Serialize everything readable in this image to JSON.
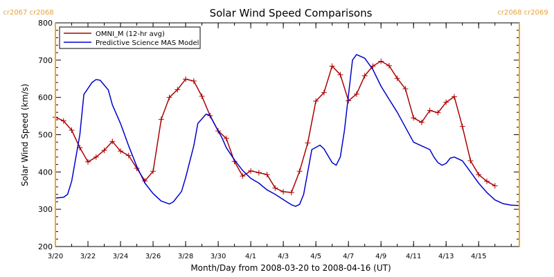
{
  "chart_data": {
    "type": "line",
    "title": "Solar Wind Speed Comparisons",
    "xlabel": "Month/Day from 2008-03-20 to 2008-04-16 (UT)",
    "ylabel": "Solar Wind Speed (km/s)",
    "xlim": [
      "2008-03-20",
      "2008-04-17 12:00"
    ],
    "ylim": [
      200,
      800
    ],
    "y_ticks": [
      200,
      300,
      400,
      500,
      600,
      700,
      800
    ],
    "x_ticks": [
      {
        "date": "2008-03-20",
        "label": "3/20"
      },
      {
        "date": "2008-03-22",
        "label": "3/22"
      },
      {
        "date": "2008-03-24",
        "label": "3/24"
      },
      {
        "date": "2008-03-26",
        "label": "3/26"
      },
      {
        "date": "2008-03-28",
        "label": "3/28"
      },
      {
        "date": "2008-03-30",
        "label": "3/30"
      },
      {
        "date": "2008-04-01",
        "label": "4/1"
      },
      {
        "date": "2008-04-03",
        "label": "4/3"
      },
      {
        "date": "2008-04-05",
        "label": "4/5"
      },
      {
        "date": "2008-04-07",
        "label": "4/7"
      },
      {
        "date": "2008-04-09",
        "label": "4/9"
      },
      {
        "date": "2008-04-11",
        "label": "4/11"
      },
      {
        "date": "2008-04-13",
        "label": "4/13"
      },
      {
        "date": "2008-04-15",
        "label": "4/15"
      }
    ],
    "legend_position": "top-left",
    "grid": false,
    "carrington_markers": [
      {
        "date": "2008-03-20",
        "label": "cr2067 cr2068",
        "color": "#f5a623"
      },
      {
        "date": "2008-04-17 12:00",
        "label": "cr2068 cr2069",
        "color": "#f5a623"
      }
    ],
    "series": [
      {
        "name": "OMNI_M (12-hr avg)",
        "color": "#aa0000",
        "marker": "plus",
        "points": [
          [
            "2008-03-20 00:00",
            547
          ],
          [
            "2008-03-20 12:00",
            537
          ],
          [
            "2008-03-21 00:00",
            512
          ],
          [
            "2008-03-21 12:00",
            465
          ],
          [
            "2008-03-22 00:00",
            427
          ],
          [
            "2008-03-22 12:00",
            440
          ],
          [
            "2008-03-23 00:00",
            458
          ],
          [
            "2008-03-23 12:00",
            482
          ],
          [
            "2008-03-24 00:00",
            456
          ],
          [
            "2008-03-24 12:00",
            444
          ],
          [
            "2008-03-25 00:00",
            410
          ],
          [
            "2008-03-25 12:00",
            376
          ],
          [
            "2008-03-26 00:00",
            402
          ],
          [
            "2008-03-26 12:00",
            541
          ],
          [
            "2008-03-27 00:00",
            600
          ],
          [
            "2008-03-27 12:00",
            621
          ],
          [
            "2008-03-28 00:00",
            649
          ],
          [
            "2008-03-28 12:00",
            644
          ],
          [
            "2008-03-29 00:00",
            603
          ],
          [
            "2008-03-29 12:00",
            551
          ],
          [
            "2008-03-30 00:00",
            510
          ],
          [
            "2008-03-30 12:00",
            490
          ],
          [
            "2008-03-31 00:00",
            428
          ],
          [
            "2008-03-31 12:00",
            389
          ],
          [
            "2008-04-01 00:00",
            403
          ],
          [
            "2008-04-01 12:00",
            398
          ],
          [
            "2008-04-02 00:00",
            393
          ],
          [
            "2008-04-02 12:00",
            357
          ],
          [
            "2008-04-03 00:00",
            347
          ],
          [
            "2008-04-03 12:00",
            345
          ],
          [
            "2008-04-04 00:00",
            402
          ],
          [
            "2008-04-04 12:00",
            478
          ],
          [
            "2008-04-05 00:00",
            590
          ],
          [
            "2008-04-05 12:00",
            613
          ],
          [
            "2008-04-06 00:00",
            684
          ],
          [
            "2008-04-06 12:00",
            661
          ],
          [
            "2008-04-07 00:00",
            591
          ],
          [
            "2008-04-07 12:00",
            609
          ],
          [
            "2008-04-08 00:00",
            658
          ],
          [
            "2008-04-08 12:00",
            684
          ],
          [
            "2008-04-09 00:00",
            697
          ],
          [
            "2008-04-09 12:00",
            685
          ],
          [
            "2008-04-10 00:00",
            651
          ],
          [
            "2008-04-10 12:00",
            623
          ],
          [
            "2008-04-11 00:00",
            545
          ],
          [
            "2008-04-11 12:00",
            533
          ],
          [
            "2008-04-12 00:00",
            565
          ],
          [
            "2008-04-12 12:00",
            559
          ],
          [
            "2008-04-13 00:00",
            587
          ],
          [
            "2008-04-13 12:00",
            602
          ],
          [
            "2008-04-14 00:00",
            522
          ],
          [
            "2008-04-14 12:00",
            430
          ],
          [
            "2008-04-15 00:00",
            393
          ],
          [
            "2008-04-15 12:00",
            375
          ],
          [
            "2008-04-16 00:00",
            363
          ]
        ]
      },
      {
        "name": "Predictive Science MAS Model",
        "color": "#0000cc",
        "marker": "none",
        "points": [
          [
            "2008-03-20 00:00",
            330
          ],
          [
            "2008-03-20 12:00",
            332
          ],
          [
            "2008-03-20 18:00",
            340
          ],
          [
            "2008-03-21 00:00",
            375
          ],
          [
            "2008-03-21 12:00",
            500
          ],
          [
            "2008-03-21 18:00",
            608
          ],
          [
            "2008-03-22 06:00",
            640
          ],
          [
            "2008-03-22 12:00",
            648
          ],
          [
            "2008-03-22 18:00",
            646
          ],
          [
            "2008-03-23 06:00",
            620
          ],
          [
            "2008-03-23 12:00",
            580
          ],
          [
            "2008-03-24 00:00",
            530
          ],
          [
            "2008-03-24 12:00",
            470
          ],
          [
            "2008-03-25 00:00",
            415
          ],
          [
            "2008-03-25 12:00",
            370
          ],
          [
            "2008-03-26 00:00",
            342
          ],
          [
            "2008-03-26 12:00",
            322
          ],
          [
            "2008-03-27 00:00",
            314
          ],
          [
            "2008-03-27 06:00",
            320
          ],
          [
            "2008-03-27 18:00",
            348
          ],
          [
            "2008-03-28 00:00",
            385
          ],
          [
            "2008-03-28 12:00",
            470
          ],
          [
            "2008-03-28 18:00",
            530
          ],
          [
            "2008-03-29 06:00",
            555
          ],
          [
            "2008-03-29 12:00",
            552
          ],
          [
            "2008-03-29 18:00",
            530
          ],
          [
            "2008-03-30 06:00",
            490
          ],
          [
            "2008-03-30 12:00",
            465
          ],
          [
            "2008-03-31 00:00",
            432
          ],
          [
            "2008-03-31 12:00",
            404
          ],
          [
            "2008-04-01 00:00",
            383
          ],
          [
            "2008-04-01 12:00",
            370
          ],
          [
            "2008-04-02 00:00",
            352
          ],
          [
            "2008-04-02 12:00",
            340
          ],
          [
            "2008-04-03 00:00",
            326
          ],
          [
            "2008-04-03 12:00",
            312
          ],
          [
            "2008-04-03 18:00",
            308
          ],
          [
            "2008-04-04 00:00",
            313
          ],
          [
            "2008-04-04 06:00",
            340
          ],
          [
            "2008-04-04 12:00",
            400
          ],
          [
            "2008-04-04 18:00",
            460
          ],
          [
            "2008-04-05 06:00",
            472
          ],
          [
            "2008-04-05 12:00",
            462
          ],
          [
            "2008-04-06 00:00",
            425
          ],
          [
            "2008-04-06 06:00",
            418
          ],
          [
            "2008-04-06 12:00",
            440
          ],
          [
            "2008-04-06 18:00",
            510
          ],
          [
            "2008-04-07 06:00",
            700
          ],
          [
            "2008-04-07 12:00",
            715
          ],
          [
            "2008-04-08 00:00",
            705
          ],
          [
            "2008-04-08 12:00",
            675
          ],
          [
            "2008-04-09 00:00",
            630
          ],
          [
            "2008-04-09 12:00",
            595
          ],
          [
            "2008-04-10 00:00",
            560
          ],
          [
            "2008-04-10 12:00",
            520
          ],
          [
            "2008-04-11 00:00",
            480
          ],
          [
            "2008-04-11 12:00",
            470
          ],
          [
            "2008-04-12 00:00",
            460
          ],
          [
            "2008-04-12 06:00",
            440
          ],
          [
            "2008-04-12 12:00",
            425
          ],
          [
            "2008-04-12 18:00",
            418
          ],
          [
            "2008-04-13 00:00",
            423
          ],
          [
            "2008-04-13 06:00",
            437
          ],
          [
            "2008-04-13 12:00",
            440
          ],
          [
            "2008-04-14 00:00",
            430
          ],
          [
            "2008-04-14 12:00",
            400
          ],
          [
            "2008-04-15 00:00",
            370
          ],
          [
            "2008-04-15 12:00",
            345
          ],
          [
            "2008-04-16 00:00",
            325
          ],
          [
            "2008-04-16 12:00",
            315
          ],
          [
            "2008-04-17 00:00",
            311
          ],
          [
            "2008-04-17 12:00",
            310
          ]
        ]
      }
    ]
  }
}
